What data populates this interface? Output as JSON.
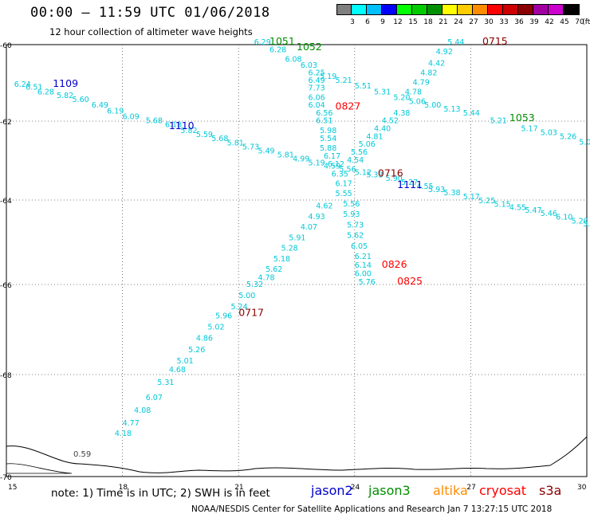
{
  "header": {
    "title": "00:00 — 11:59 UTC 01/06/2018",
    "subtitle": "12 hour collection of altimeter wave heights"
  },
  "legend": {
    "unit": "(ft)",
    "bins": [
      {
        "label": "3",
        "color": "#7f7f7f"
      },
      {
        "label": "6",
        "color": "#00ffff"
      },
      {
        "label": "9",
        "color": "#00bfff"
      },
      {
        "label": "12",
        "color": "#0000ff"
      },
      {
        "label": "15",
        "color": "#00ff00"
      },
      {
        "label": "18",
        "color": "#00cc00"
      },
      {
        "label": "21",
        "color": "#008f00"
      },
      {
        "label": "24",
        "color": "#ffff00"
      },
      {
        "label": "27",
        "color": "#ffcc00"
      },
      {
        "label": "30",
        "color": "#ff8c00"
      },
      {
        "label": "33",
        "color": "#ff0000"
      },
      {
        "label": "36",
        "color": "#cc0000"
      },
      {
        "label": "39",
        "color": "#8b0000"
      },
      {
        "label": "42",
        "color": "#a000a0"
      },
      {
        "label": "45",
        "color": "#cc00cc"
      },
      {
        "label": "70",
        "color": "#000000"
      }
    ]
  },
  "map": {
    "lon_ticks": [
      "15",
      "18",
      "21",
      "24",
      "27",
      "30"
    ],
    "lat_ticks": [
      "-60",
      "-62",
      "-64",
      "-66",
      "-68",
      "-70"
    ],
    "land_label": "0.59",
    "track_color": "#00c8d8"
  },
  "time_labels": [
    {
      "text": "1109",
      "mission": "jason2",
      "lon": 16.2,
      "lat": -61.1
    },
    {
      "text": "1110",
      "mission": "jason2",
      "lon": 19.2,
      "lat": -62.2
    },
    {
      "text": "1111",
      "mission": "jason2",
      "lon": 25.1,
      "lat": -63.7
    },
    {
      "text": "1051",
      "mission": "jason3",
      "lon": 21.8,
      "lat": -59.95
    },
    {
      "text": "1052",
      "mission": "jason3",
      "lon": 22.5,
      "lat": -60.15
    },
    {
      "text": "1053",
      "mission": "jason3",
      "lon": 28.0,
      "lat": -62.0
    },
    {
      "text": "0715",
      "mission": "s3a",
      "lon": 27.3,
      "lat": -59.95
    },
    {
      "text": "0716",
      "mission": "s3a",
      "lon": 24.6,
      "lat": -63.4
    },
    {
      "text": "0717",
      "mission": "s3a",
      "lon": 21.0,
      "lat": -66.7
    },
    {
      "text": "0827",
      "mission": "cryosat",
      "lon": 23.5,
      "lat": -61.7
    },
    {
      "text": "0826",
      "mission": "cryosat",
      "lon": 24.7,
      "lat": -65.6
    },
    {
      "text": "0825",
      "mission": "cryosat",
      "lon": 25.1,
      "lat": -66.0
    }
  ],
  "tracks": [
    {
      "id": "j2-west",
      "values": [
        {
          "v": "6.24",
          "lon": 15.2,
          "lat": -61.1
        },
        {
          "v": "6.51",
          "lon": 15.5,
          "lat": -61.18
        },
        {
          "v": "6.28",
          "lon": 15.8,
          "lat": -61.3
        },
        {
          "v": "5.82",
          "lon": 16.3,
          "lat": -61.4
        },
        {
          "v": "5.60",
          "lon": 16.7,
          "lat": -61.5
        },
        {
          "v": "6.49",
          "lon": 17.2,
          "lat": -61.65
        },
        {
          "v": "6.19",
          "lon": 17.6,
          "lat": -61.8
        },
        {
          "v": "6.09",
          "lon": 18.0,
          "lat": -61.95
        },
        {
          "v": "5.68",
          "lon": 18.6,
          "lat": -62.05
        },
        {
          "v": "6.18",
          "lon": 19.1,
          "lat": -62.15
        },
        {
          "v": "5.82",
          "lon": 19.5,
          "lat": -62.3
        },
        {
          "v": "5.59",
          "lon": 19.9,
          "lat": -62.4
        },
        {
          "v": "5.68",
          "lon": 20.3,
          "lat": -62.5
        },
        {
          "v": "5.81",
          "lon": 20.7,
          "lat": -62.62
        },
        {
          "v": "5.73",
          "lon": 21.1,
          "lat": -62.72
        },
        {
          "v": "5.49",
          "lon": 21.5,
          "lat": -62.82
        },
        {
          "v": "5.81",
          "lon": 22.0,
          "lat": -62.92
        },
        {
          "v": "4.99",
          "lon": 22.4,
          "lat": -63.02
        },
        {
          "v": "5.19",
          "lon": 22.8,
          "lat": -63.12
        },
        {
          "v": "4.59",
          "lon": 23.2,
          "lat": -63.2
        },
        {
          "v": "5.56",
          "lon": 23.6,
          "lat": -63.28
        },
        {
          "v": "5.12",
          "lon": 24.0,
          "lat": -63.36
        },
        {
          "v": "5.33",
          "lon": 24.3,
          "lat": -63.42
        }
      ]
    },
    {
      "id": "j2-east",
      "values": [
        {
          "v": "5.90",
          "lon": 24.8,
          "lat": -63.52
        },
        {
          "v": "5.27",
          "lon": 25.2,
          "lat": -63.62
        },
        {
          "v": "4.55",
          "lon": 25.6,
          "lat": -63.72
        },
        {
          "v": "5.93",
          "lon": 25.9,
          "lat": -63.8
        },
        {
          "v": "5.38",
          "lon": 26.3,
          "lat": -63.88
        },
        {
          "v": "5.17",
          "lon": 26.8,
          "lat": -63.98
        },
        {
          "v": "5.25",
          "lon": 27.2,
          "lat": -64.08
        },
        {
          "v": "5.15",
          "lon": 27.6,
          "lat": -64.16
        },
        {
          "v": "4.55",
          "lon": 28.0,
          "lat": -64.24
        },
        {
          "v": "5.47",
          "lon": 28.4,
          "lat": -64.3
        },
        {
          "v": "5.46",
          "lon": 28.8,
          "lat": -64.38
        },
        {
          "v": "6.10",
          "lon": 29.2,
          "lat": -64.46
        },
        {
          "v": "5.20",
          "lon": 29.6,
          "lat": -64.56
        },
        {
          "v": "5.30",
          "lon": 29.9,
          "lat": -64.62
        }
      ]
    },
    {
      "id": "j3",
      "values": [
        {
          "v": "5.19",
          "lon": 23.1,
          "lat": -60.9
        },
        {
          "v": "5.21",
          "lon": 23.5,
          "lat": -61.0
        },
        {
          "v": "5.51",
          "lon": 24.0,
          "lat": -61.15
        },
        {
          "v": "5.31",
          "lon": 24.5,
          "lat": -61.3
        },
        {
          "v": "5.20",
          "lon": 25.0,
          "lat": -61.45
        },
        {
          "v": "5.06",
          "lon": 25.4,
          "lat": -61.55
        },
        {
          "v": "5.00",
          "lon": 25.8,
          "lat": -61.65
        },
        {
          "v": "5.13",
          "lon": 26.3,
          "lat": -61.75
        },
        {
          "v": "5.44",
          "lon": 26.8,
          "lat": -61.85
        },
        {
          "v": "5.21",
          "lon": 27.5,
          "lat": -62.05
        },
        {
          "v": "5.17",
          "lon": 28.3,
          "lat": -62.25
        },
        {
          "v": "5.03",
          "lon": 28.8,
          "lat": -62.35
        },
        {
          "v": "5.26",
          "lon": 29.3,
          "lat": -62.45
        },
        {
          "v": "5.02",
          "lon": 29.8,
          "lat": -62.6
        }
      ]
    },
    {
      "id": "s3a-north",
      "values": [
        {
          "v": "5.44",
          "lon": 26.4,
          "lat": -59.95
        },
        {
          "v": "4.92",
          "lon": 26.1,
          "lat": -60.25
        },
        {
          "v": "4.42",
          "lon": 25.9,
          "lat": -60.55
        },
        {
          "v": "4.82",
          "lon": 25.7,
          "lat": -60.8
        },
        {
          "v": "4.79",
          "lon": 25.5,
          "lat": -61.05
        },
        {
          "v": "4.78",
          "lon": 25.3,
          "lat": -61.3
        },
        {
          "v": "4.38",
          "lon": 25.0,
          "lat": -61.85
        },
        {
          "v": "4.52",
          "lon": 24.7,
          "lat": -62.05
        },
        {
          "v": "4.40",
          "lon": 24.5,
          "lat": -62.25
        },
        {
          "v": "4.81",
          "lon": 24.3,
          "lat": -62.45
        },
        {
          "v": "5.06",
          "lon": 24.1,
          "lat": -62.65
        },
        {
          "v": "5.56",
          "lon": 23.9,
          "lat": -62.85
        },
        {
          "v": "4.54",
          "lon": 23.8,
          "lat": -63.05
        }
      ]
    },
    {
      "id": "s3a-south",
      "values": [
        {
          "v": "4.62",
          "lon": 23.0,
          "lat": -64.2
        },
        {
          "v": "4.93",
          "lon": 22.8,
          "lat": -64.45
        },
        {
          "v": "4.07",
          "lon": 22.6,
          "lat": -64.7
        },
        {
          "v": "5.91",
          "lon": 22.3,
          "lat": -64.95
        },
        {
          "v": "5.28",
          "lon": 22.1,
          "lat": -65.2
        },
        {
          "v": "5.18",
          "lon": 21.9,
          "lat": -65.45
        },
        {
          "v": "5.62",
          "lon": 21.7,
          "lat": -65.7
        },
        {
          "v": "4.78",
          "lon": 21.5,
          "lat": -65.9
        },
        {
          "v": "5.32",
          "lon": 21.2,
          "lat": -66.05
        },
        {
          "v": "5.00",
          "lon": 21.0,
          "lat": -66.3
        },
        {
          "v": "5.24",
          "lon": 20.8,
          "lat": -66.55
        },
        {
          "v": "5.96",
          "lon": 20.4,
          "lat": -66.75
        },
        {
          "v": "5.02",
          "lon": 20.2,
          "lat": -67.0
        },
        {
          "v": "4.86",
          "lon": 19.9,
          "lat": -67.25
        },
        {
          "v": "5.26",
          "lon": 19.7,
          "lat": -67.5
        },
        {
          "v": "5.01",
          "lon": 19.4,
          "lat": -67.75
        },
        {
          "v": "4.68",
          "lon": 19.2,
          "lat": -67.95
        },
        {
          "v": "5.31",
          "lon": 18.9,
          "lat": -68.2
        },
        {
          "v": "6.07",
          "lon": 18.6,
          "lat": -68.5
        },
        {
          "v": "4.08",
          "lon": 18.3,
          "lat": -68.75
        },
        {
          "v": "4.77",
          "lon": 18.0,
          "lat": -69.0
        },
        {
          "v": "4.18",
          "lon": 17.8,
          "lat": -69.2
        }
      ]
    },
    {
      "id": "cryo",
      "values": [
        {
          "v": "6.25",
          "lon": 22.8,
          "lat": -60.8
        },
        {
          "v": "6.49",
          "lon": 22.8,
          "lat": -61.0
        },
        {
          "v": "7.73",
          "lon": 22.8,
          "lat": -61.2
        },
        {
          "v": "6.06",
          "lon": 22.8,
          "lat": -61.45
        },
        {
          "v": "6.04",
          "lon": 22.8,
          "lat": -61.65
        },
        {
          "v": "6.56",
          "lon": 23.0,
          "lat": -61.85
        },
        {
          "v": "6.51",
          "lon": 23.0,
          "lat": -62.05
        },
        {
          "v": "5.98",
          "lon": 23.1,
          "lat": -62.3
        },
        {
          "v": "5.54",
          "lon": 23.1,
          "lat": -62.5
        },
        {
          "v": "5.88",
          "lon": 23.1,
          "lat": -62.75
        },
        {
          "v": "6.17",
          "lon": 23.2,
          "lat": -62.95
        },
        {
          "v": "6.12",
          "lon": 23.3,
          "lat": -63.15
        },
        {
          "v": "6.35",
          "lon": 23.4,
          "lat": -63.4
        },
        {
          "v": "6.17",
          "lon": 23.5,
          "lat": -63.65
        },
        {
          "v": "5.55",
          "lon": 23.5,
          "lat": -63.9
        },
        {
          "v": "5.56",
          "lon": 23.7,
          "lat": -64.15
        },
        {
          "v": "5.93",
          "lon": 23.7,
          "lat": -64.4
        },
        {
          "v": "5.73",
          "lon": 23.8,
          "lat": -64.65
        },
        {
          "v": "5.62",
          "lon": 23.8,
          "lat": -64.9
        },
        {
          "v": "6.05",
          "lon": 23.9,
          "lat": -65.15
        },
        {
          "v": "6.21",
          "lon": 24.0,
          "lat": -65.4
        },
        {
          "v": "6.14",
          "lon": 24.0,
          "lat": -65.6
        },
        {
          "v": "6.00",
          "lon": 24.0,
          "lat": -65.8
        },
        {
          "v": "5.76",
          "lon": 24.1,
          "lat": -66.0
        }
      ]
    },
    {
      "id": "j3-start",
      "values": [
        {
          "v": "6.29",
          "lon": 21.4,
          "lat": -60.0
        },
        {
          "v": "6.28",
          "lon": 21.8,
          "lat": -60.2
        },
        {
          "v": "6.08",
          "lon": 22.2,
          "lat": -60.45
        },
        {
          "v": "6.03",
          "lon": 22.6,
          "lat": -60.6
        }
      ]
    }
  ],
  "footer": {
    "note": "note: 1) Time is in UTC; 2) SWH is in feet",
    "missions": [
      {
        "name": "jason2",
        "color": "#0000cc"
      },
      {
        "name": "jason3",
        "color": "#008f00"
      },
      {
        "name": "altika",
        "color": "#ff8c00"
      },
      {
        "name": "cryosat",
        "color": "#ff0000"
      },
      {
        "name": "s3a",
        "color": "#8b0000"
      }
    ],
    "credit": "NOAA/NESDIS Center for Satellite Applications and Research   Jan  7 13:27:15 UTC 2018"
  }
}
